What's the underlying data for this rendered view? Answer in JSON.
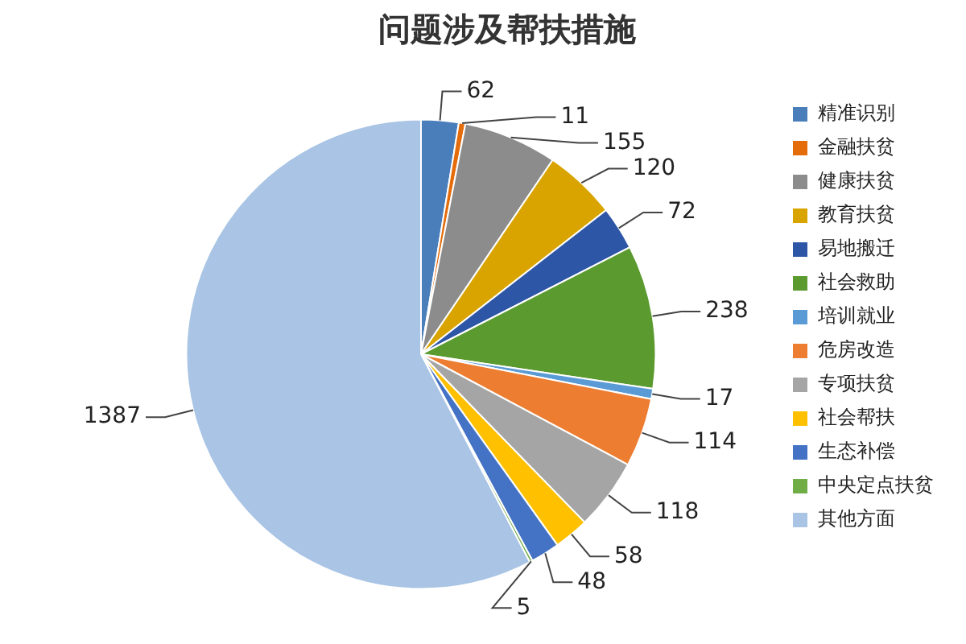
{
  "chart_data": {
    "type": "pie",
    "title": "问题涉及帮扶措施",
    "categories": [
      "精准识别",
      "金融扶贫",
      "健康扶贫",
      "教育扶贫",
      "易地搬迁",
      "社会救助",
      "培训就业",
      "危房改造",
      "专项扶贫",
      "社会帮扶",
      "生态补偿",
      "中央定点扶贫",
      "其他方面"
    ],
    "values": [
      62,
      11,
      155,
      120,
      72,
      238,
      17,
      114,
      118,
      58,
      48,
      5,
      1387
    ],
    "colors": [
      "#4a7ebb",
      "#e46c0a",
      "#8c8c8c",
      "#d9a400",
      "#2e56a6",
      "#5a9a2f",
      "#5b9bd5",
      "#ed7d31",
      "#a5a5a5",
      "#ffc000",
      "#4472c4",
      "#70ad47",
      "#a9c4e4"
    ],
    "data_labels": true,
    "legend": "right"
  }
}
